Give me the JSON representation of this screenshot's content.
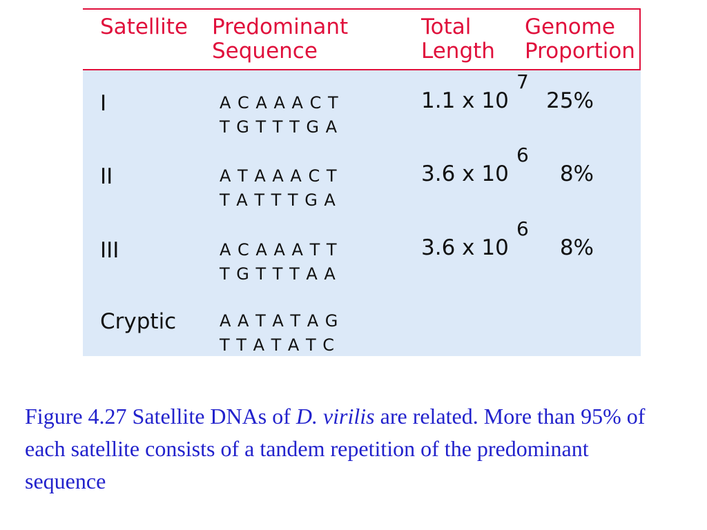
{
  "table": {
    "header": [
      [
        "Satellite"
      ],
      [
        "Predominant",
        "Sequence"
      ],
      [
        "Total",
        "Length"
      ],
      [
        "Genome",
        "Proportion"
      ]
    ],
    "rows": [
      {
        "name": "I",
        "sequence": [
          "A C A A A C T",
          "T G T T T G A"
        ],
        "length": "1.1 x 10",
        "exponent": "7",
        "proportion": "25%"
      },
      {
        "name": "II",
        "sequence": [
          "A T A A A C T",
          "T A T T T G A"
        ],
        "length": "3.6 x 10",
        "exponent": "6",
        "proportion": "8%"
      },
      {
        "name": "III",
        "sequence": [
          "A C A A A T T",
          "T G T T T A A"
        ],
        "length": "3.6 x 10",
        "exponent": "6",
        "proportion": "8%"
      },
      {
        "name": "Cryptic",
        "sequence": [
          "A A T A T A G",
          "T T A T A T C"
        ]
      }
    ]
  },
  "caption": {
    "before": "Figure 4.27 Satellite DNAs of ",
    "species": "D. virilis",
    "after": " are related. More than 95% of each satellite consists of a tandem repetition of the predominant sequence"
  }
}
